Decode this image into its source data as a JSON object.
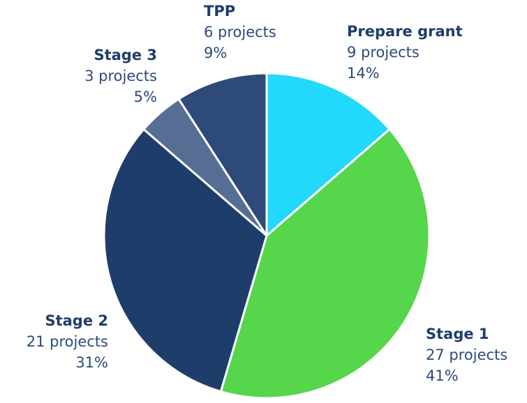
{
  "chart_data": {
    "type": "pie",
    "categories": [
      "Prepare grant",
      "Stage 1",
      "Stage 2",
      "Stage 3",
      "TPP"
    ],
    "values": [
      9,
      27,
      21,
      3,
      6
    ],
    "value_labels": [
      "9 projects",
      "27 projects",
      "21 projects",
      "3 projects",
      "6 projects"
    ],
    "percents": [
      14,
      41,
      31,
      5,
      9
    ],
    "percent_labels": [
      "14%",
      "41%",
      "31%",
      "5%",
      "9%"
    ],
    "colors": [
      "#22d8fb",
      "#55d64b",
      "#1f3d6b",
      "#566e93",
      "#2e4a78"
    ]
  }
}
